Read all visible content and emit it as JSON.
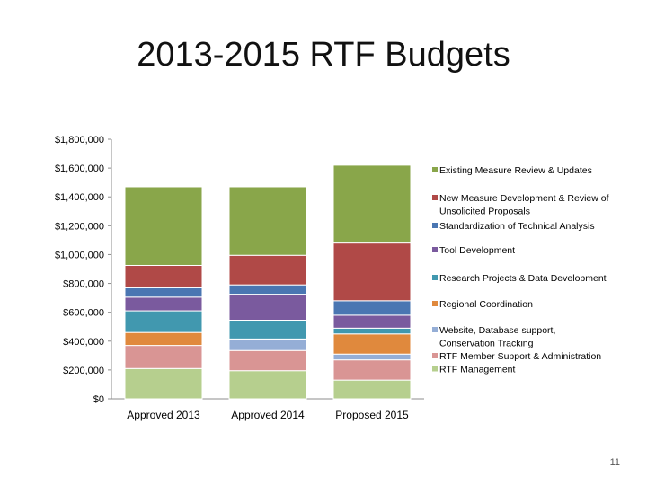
{
  "slide": {
    "title": "2013-2015 RTF Budgets",
    "page_number": "11"
  },
  "chart_data": {
    "type": "bar",
    "stacked": true,
    "title": "",
    "xlabel": "",
    "ylabel": "",
    "ylim": [
      0,
      1800000
    ],
    "ytick_step": 200000,
    "y_tick_labels": [
      "$0",
      "$200,000",
      "$400,000",
      "$600,000",
      "$800,000",
      "$1,000,000",
      "$1,200,000",
      "$1,400,000",
      "$1,600,000",
      "$1,800,000"
    ],
    "categories": [
      "Approved 2013",
      "Approved 2014",
      "Proposed 2015"
    ],
    "legend_position": "right",
    "series": [
      {
        "name": "RTF Management",
        "color": "#b6cf8e",
        "values": [
          210000,
          195000,
          130000
        ]
      },
      {
        "name": "RTF Member Support & Administration",
        "color": "#d99594",
        "values": [
          160000,
          140000,
          140000
        ]
      },
      {
        "name": "Website, Database support, Conservation Tracking",
        "color": "#95aed6",
        "values": [
          0,
          80000,
          40000
        ]
      },
      {
        "name": "Regional Coordination",
        "color": "#e0893d",
        "values": [
          90000,
          0,
          140000
        ]
      },
      {
        "name": "Research Projects & Data Development",
        "color": "#4198af",
        "values": [
          150000,
          130000,
          40000
        ]
      },
      {
        "name": "Tool Development",
        "color": "#7a5a9e",
        "values": [
          95000,
          180000,
          90000
        ]
      },
      {
        "name": "Standardization of Technical Analysis",
        "color": "#4a76b2",
        "values": [
          65000,
          65000,
          100000
        ]
      },
      {
        "name": "New Measure Development & Review of Unsolicited Proposals",
        "color": "#b04947",
        "values": [
          155000,
          205000,
          400000
        ]
      },
      {
        "name": "Existing Measure Review & Updates",
        "color": "#89a64a",
        "values": [
          545000,
          475000,
          540000
        ]
      }
    ]
  }
}
